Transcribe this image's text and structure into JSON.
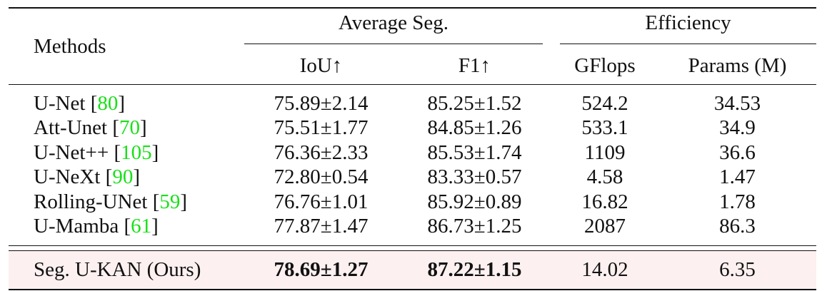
{
  "table": {
    "headers": {
      "methods": "Methods",
      "group_seg": "Average Seg.",
      "group_eff": "Efficiency",
      "iou": "IoU↑",
      "f1": "F1↑",
      "gflops": "GFlops",
      "params": "Params (M)"
    },
    "rows": [
      {
        "method": "U-Net ",
        "open": "[",
        "cite": "80",
        "close": "]",
        "iou": "75.89±2.14",
        "f1": "85.25±1.52",
        "gflops": "524.2",
        "params": "34.53"
      },
      {
        "method": "Att-Unet ",
        "open": "[",
        "cite": "70",
        "close": "]",
        "iou": "75.51±1.77",
        "f1": "84.85±1.26",
        "gflops": "533.1",
        "params": "34.9"
      },
      {
        "method": "U-Net++ ",
        "open": "[",
        "cite": "105",
        "close": "]",
        "iou": "76.36±2.33",
        "f1": "85.53±1.74",
        "gflops": "1109",
        "params": "36.6"
      },
      {
        "method": "U-NeXt ",
        "open": "[",
        "cite": "90",
        "close": "]",
        "iou": "72.80±0.54",
        "f1": "83.33±0.57",
        "gflops": "4.58",
        "params": "1.47"
      },
      {
        "method": "Rolling-UNet ",
        "open": "[",
        "cite": "59",
        "close": "]",
        "iou": "76.76±1.01",
        "f1": "85.92±0.89",
        "gflops": "16.82",
        "params": "1.78"
      },
      {
        "method": "U-Mamba ",
        "open": "[",
        "cite": "61",
        "close": "]",
        "iou": "77.87±1.47",
        "f1": "86.73±1.25",
        "gflops": "2087",
        "params": "86.3"
      }
    ],
    "ours": {
      "method": "Seg. U-KAN (Ours)",
      "iou": "78.69±1.27",
      "f1": "87.22±1.15",
      "gflops": "14.02",
      "params": "6.35"
    },
    "colors": {
      "citation": "#18e018",
      "highlight_row": "#fdf0f0"
    }
  }
}
